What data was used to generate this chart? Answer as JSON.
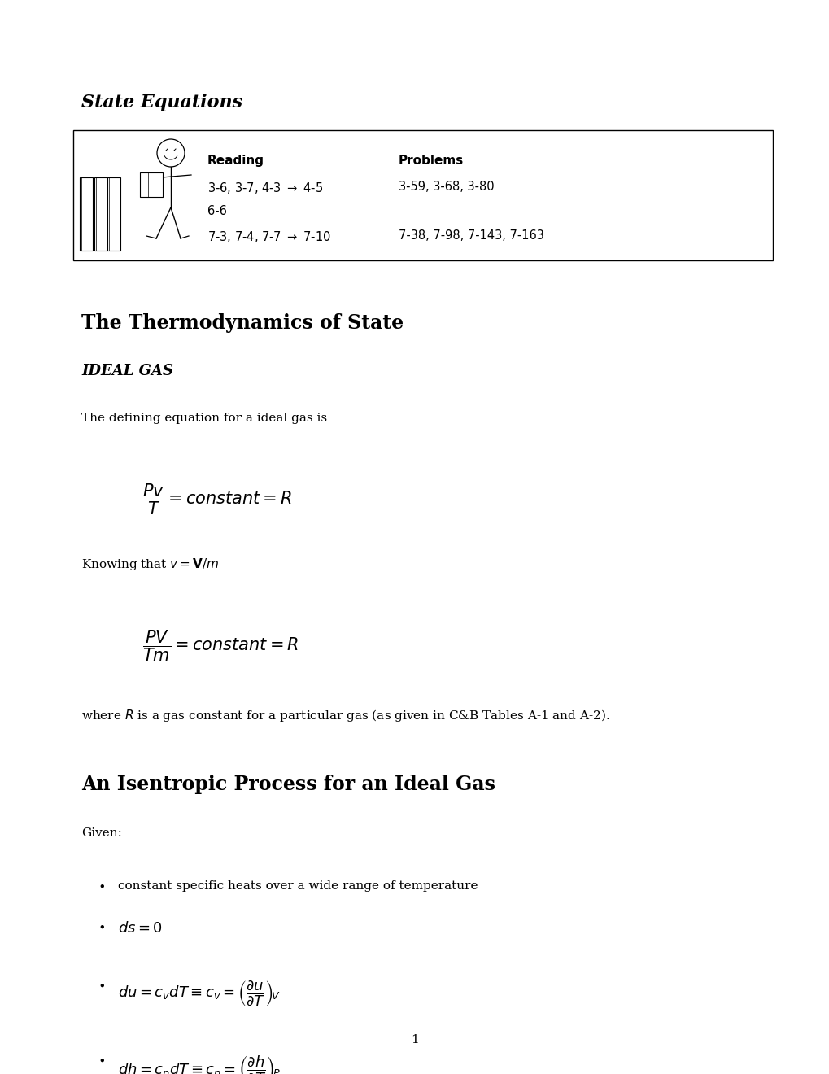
{
  "bg_color": "#ffffff",
  "page_width": 10.2,
  "page_height": 13.2,
  "title1": "State Equations",
  "section1": "The Thermodynamics of State",
  "subsection1": "IDEAL GAS",
  "body1": "The defining equation for a ideal gas is",
  "body2_pre": "Knowing that ",
  "body2_math": "$v = \\mathbf{V}/m$",
  "body3_1": "where ",
  "body3_2": " is a gas constant for a particular gas (as given in C&B Tables A-1 and A-2).",
  "section2": "An Isentropic Process for an Ideal Gas",
  "given": "Given:",
  "bullet1": "constant specific heats over a wide range of temperature",
  "page_num": "1",
  "reading_header": "Reading",
  "problems_header": "Problems",
  "problems_row1": "3-59, 3-68, 3-80",
  "problems_row2": "7-38, 7-98, 7-143, 7-163"
}
